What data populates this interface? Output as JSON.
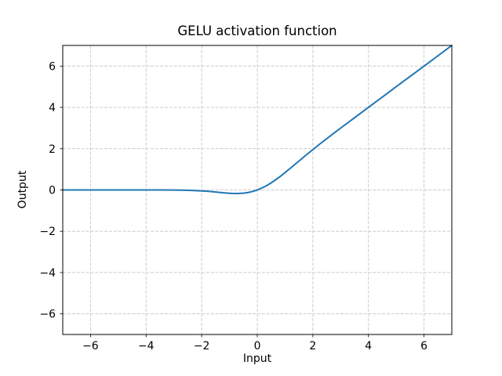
{
  "figure": {
    "background_color": "#ffffff",
    "text_color": "#000000"
  },
  "chart_data": {
    "type": "line",
    "title": "GELU activation function",
    "xlabel": "Input",
    "ylabel": "Output",
    "xlim": [
      -7,
      7
    ],
    "ylim": [
      -7,
      7
    ],
    "xticks": [
      -6,
      -4,
      -2,
      0,
      2,
      4,
      6
    ],
    "yticks": [
      -6,
      -4,
      -2,
      0,
      2,
      4,
      6
    ],
    "grid": true,
    "grid_linestyle": "dashed",
    "grid_color": "#cccccc",
    "spine_color": "#000000",
    "tick_color": "#000000",
    "legend": null,
    "series": [
      {
        "name": "GELU",
        "color": "#1f77b4",
        "linewidth": 2,
        "x": [
          -7,
          -6,
          -5,
          -4,
          -3.5,
          -3,
          -2.5,
          -2,
          -1.75,
          -1.5,
          -1.25,
          -1,
          -0.9,
          -0.8,
          -0.75,
          -0.7,
          -0.6,
          -0.5,
          -0.4,
          -0.3,
          -0.2,
          -0.1,
          0,
          0.1,
          0.2,
          0.3,
          0.4,
          0.5,
          0.6,
          0.7,
          0.8,
          0.9,
          1,
          1.25,
          1.5,
          1.75,
          2,
          2.25,
          2.5,
          2.75,
          3,
          3.5,
          4,
          4.5,
          5,
          6,
          7
        ],
        "y": [
          0,
          0,
          0,
          -0.0001,
          -0.0008,
          -0.004,
          -0.0155,
          -0.0455,
          -0.0701,
          -0.1003,
          -0.132,
          -0.1587,
          -0.1662,
          -0.1695,
          -0.17,
          -0.1695,
          -0.1646,
          -0.1543,
          -0.1378,
          -0.1146,
          -0.0841,
          -0.046,
          0,
          0.054,
          0.1159,
          0.1854,
          0.2622,
          0.3457,
          0.4354,
          0.5305,
          0.6305,
          0.7338,
          0.8413,
          1.1183,
          1.3997,
          1.6849,
          1.9545,
          2.2225,
          2.4845,
          2.7418,
          2.996,
          3.4992,
          3.9999,
          4.5,
          5.0,
          6.0,
          7.0
        ]
      }
    ]
  }
}
